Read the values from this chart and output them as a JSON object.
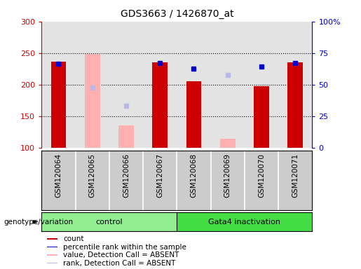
{
  "title": "GDS3663 / 1426870_at",
  "samples": [
    "GSM120064",
    "GSM120065",
    "GSM120066",
    "GSM120067",
    "GSM120068",
    "GSM120069",
    "GSM120070",
    "GSM120071"
  ],
  "red_bars": [
    236,
    null,
    null,
    235,
    205,
    null,
    198,
    235
  ],
  "pink_bars": [
    null,
    249,
    136,
    null,
    null,
    115,
    null,
    null
  ],
  "blue_squares": [
    233,
    null,
    null,
    234,
    225,
    null,
    229,
    234
  ],
  "lavender_squares": [
    null,
    196,
    167,
    null,
    null,
    215,
    null,
    null
  ],
  "ylim_left": [
    100,
    300
  ],
  "ylim_right": [
    0,
    100
  ],
  "yticks_left": [
    100,
    150,
    200,
    250,
    300
  ],
  "yticks_right": [
    0,
    25,
    50,
    75,
    100
  ],
  "yticklabels_right": [
    "0",
    "25",
    "50",
    "75",
    "100%"
  ],
  "bar_width": 0.45,
  "red_color": "#cc0000",
  "pink_color": "#ffb0b0",
  "blue_color": "#0000cc",
  "lavender_color": "#b8b8e8",
  "control_color": "#90ee90",
  "gata4_color": "#44dd44",
  "col_bg_color": "#cccccc",
  "group_label": "genotype/variation",
  "legend_items": [
    {
      "color": "#cc0000",
      "label": "count",
      "marker": "s"
    },
    {
      "color": "#0000cc",
      "label": "percentile rank within the sample",
      "marker": "s"
    },
    {
      "color": "#ffb0b0",
      "label": "value, Detection Call = ABSENT",
      "marker": "s"
    },
    {
      "color": "#b8b8e8",
      "label": "rank, Detection Call = ABSENT",
      "marker": "s"
    }
  ],
  "dotted_lines": [
    150,
    200,
    250
  ],
  "control_range": [
    0,
    3
  ],
  "gata4_range": [
    4,
    7
  ]
}
